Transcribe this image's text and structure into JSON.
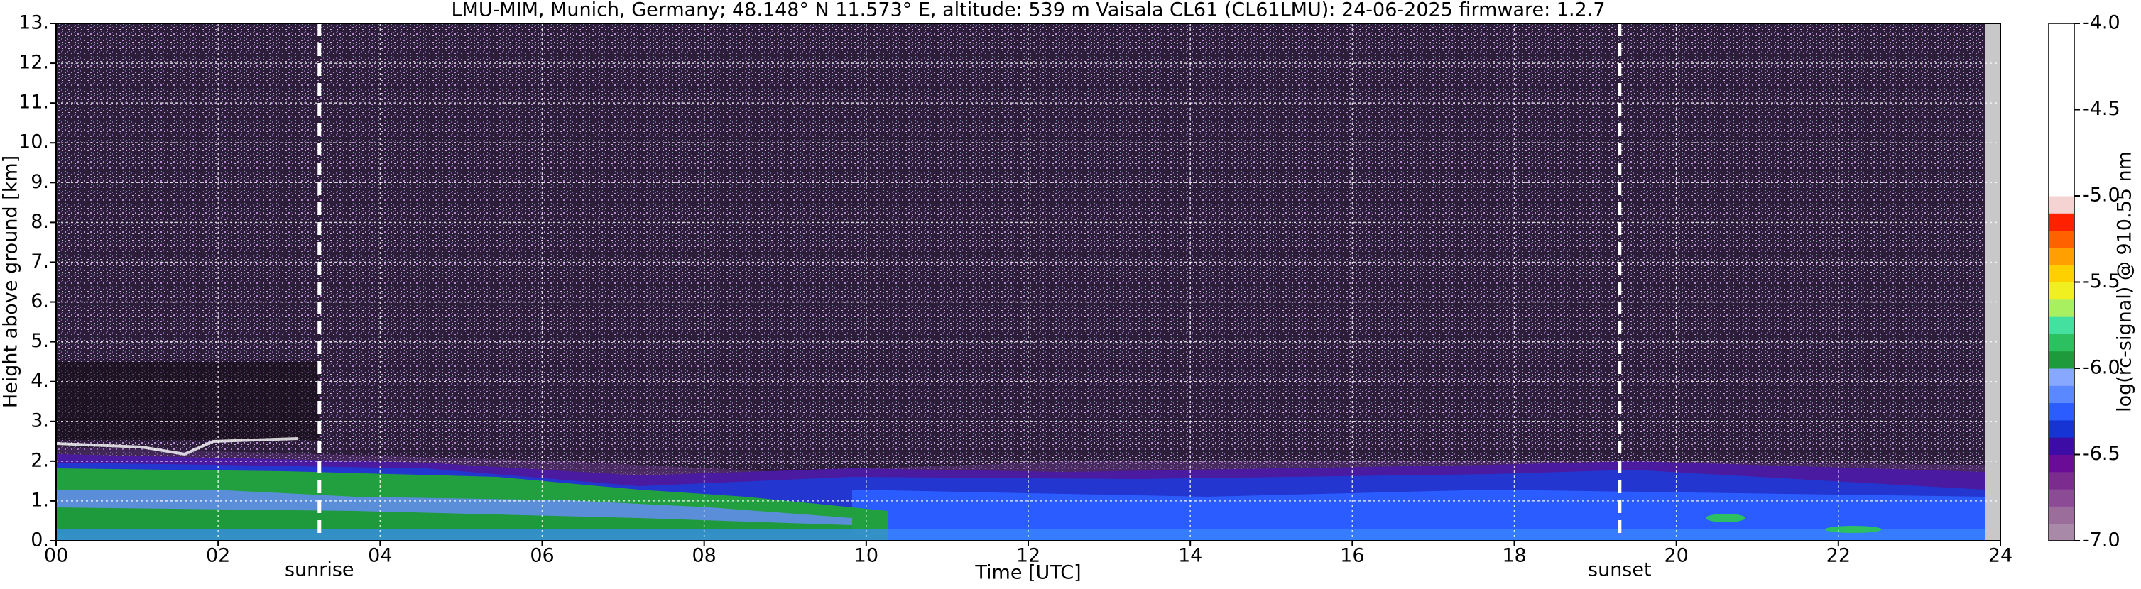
{
  "chart_data": {
    "type": "heatmap",
    "title": "LMU-MIM, Munich, Germany; 48.148° N 11.573° E, altitude: 539 m    Vaisala CL61 (CL61LMU): 24-06-2025    firmware: 1.2.7",
    "x_label": "Time [UTC]",
    "y_label": "Height above ground [km]",
    "colorbar_label": "log(rc-signal) @ 910.55 nm",
    "xlim": [
      0,
      24
    ],
    "xticks": [
      {
        "value": 0,
        "label": "00"
      },
      {
        "value": 2,
        "label": "02"
      },
      {
        "value": 4,
        "label": "04"
      },
      {
        "value": 6,
        "label": "06"
      },
      {
        "value": 8,
        "label": "08"
      },
      10,
      12,
      14,
      16,
      18,
      20,
      22,
      24
    ],
    "ylim": [
      0,
      13
    ],
    "yticks": [
      {
        "value": 0,
        "label": "0."
      },
      {
        "value": 1,
        "label": "1."
      },
      {
        "value": 2,
        "label": "2."
      },
      {
        "value": 3,
        "label": "3."
      },
      {
        "value": 4,
        "label": "4."
      },
      {
        "value": 5,
        "label": "5."
      },
      {
        "value": 6,
        "label": "6."
      },
      {
        "value": 7,
        "label": "7."
      },
      {
        "value": 8,
        "label": "8."
      },
      {
        "value": 9,
        "label": "9."
      },
      {
        "value": 10,
        "label": "10."
      },
      {
        "value": 11,
        "label": "11."
      },
      {
        "value": 12,
        "label": "12."
      },
      {
        "value": 13,
        "label": "13."
      }
    ],
    "clim": [
      -7,
      -4
    ],
    "cticks": [
      {
        "value": -7,
        "label": "-7.0"
      },
      {
        "value": -6.5,
        "label": "-6.5"
      },
      {
        "value": -6,
        "label": "-6.0"
      },
      {
        "value": -5.5,
        "label": "-5.5"
      },
      {
        "value": -5,
        "label": "-5.0"
      },
      {
        "value": -4.5,
        "label": "-4.5"
      },
      {
        "value": -4,
        "label": "-4.0"
      }
    ],
    "colors": [
      "#a88aa8",
      "#9b6d9b",
      "#8c4c95",
      "#7c2c8f",
      "#6a0c96",
      "#3c0ca4",
      "#1634d4",
      "#2a5cff",
      "#5a88ff",
      "#88a8ff",
      "#1e9a3c",
      "#2cc060",
      "#44e0a0",
      "#a8f060",
      "#f0f020",
      "#ffd000",
      "#ffa000",
      "#ff6000",
      "#ff2000",
      "#f5d3d3",
      "#ffffff",
      "#ffffff",
      "#ffffff",
      "#ffffff",
      "#ffffff",
      "#ffffff",
      "#ffffff",
      "#ffffff",
      "#ffffff",
      "#ffffff"
    ],
    "grid": true,
    "annotations": [
      {
        "label": "sunrise",
        "x": 3.25
      },
      {
        "label": "sunset",
        "x": 19.3
      }
    ]
  }
}
